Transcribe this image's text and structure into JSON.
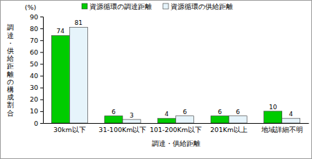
{
  "chart_data": {
    "type": "bar",
    "categories": [
      "30km以下",
      "31-100Km以下",
      "101-200Km以下",
      "201Km以上",
      "地域詳細不明"
    ],
    "series": [
      {
        "name": "資源循環の調達距離",
        "color": "#00cc00",
        "values": [
          74,
          6,
          4,
          6,
          10
        ]
      },
      {
        "name": "資源循環の供給距離",
        "color": "#e6f4fb",
        "values": [
          81,
          3,
          6,
          6,
          4
        ]
      }
    ],
    "x_label": "調達・供給距離",
    "y_label": "調達・供給距離の構成割合",
    "annotations": [
      "(%)"
    ],
    "ylim": [
      0,
      90
    ],
    "yticks": [
      0,
      10,
      20,
      30,
      40,
      50,
      60,
      70,
      80,
      90
    ],
    "grid": false,
    "legend": "top",
    "data_labels": true
  }
}
